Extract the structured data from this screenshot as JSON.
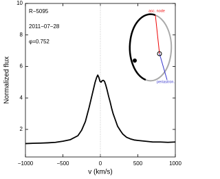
{
  "chart_data": {
    "type": "line",
    "x_label": "v (km/s)",
    "y_label": "Normalized flux",
    "annotations": [
      "R−5095",
      "2011−07−28",
      "φ=0.752"
    ],
    "inset_labels": [
      "asc. node",
      "periastron."
    ],
    "x": [
      -1000,
      -900,
      -800,
      -700,
      -600,
      -500,
      -400,
      -300,
      -250,
      -200,
      -150,
      -100,
      -70,
      -50,
      -35,
      -20,
      -5,
      10,
      25,
      40,
      55,
      70,
      90,
      110,
      130,
      150,
      170,
      200,
      230,
      270,
      300,
      350,
      400,
      450,
      500,
      600,
      700,
      800,
      900,
      1000
    ],
    "values": [
      1.1,
      1.12,
      1.13,
      1.15,
      1.18,
      1.25,
      1.35,
      1.6,
      1.95,
      2.5,
      3.4,
      4.4,
      5.0,
      5.3,
      5.45,
      5.3,
      5.05,
      5.0,
      5.1,
      5.12,
      5.05,
      4.85,
      4.5,
      4.1,
      3.75,
      3.35,
      3.0,
      2.6,
      2.2,
      1.9,
      1.7,
      1.5,
      1.4,
      1.33,
      1.3,
      1.25,
      1.2,
      1.2,
      1.18,
      1.2
    ],
    "color": "#000000",
    "xlim": [
      -1000,
      1000
    ],
    "ylim": [
      0.25,
      10
    ],
    "xticks": [
      {
        "value": -1000,
        "label": "−1000"
      },
      {
        "value": -500,
        "label": "−500"
      },
      0,
      500,
      1000
    ],
    "yticks": [
      2,
      4,
      6,
      8,
      10
    ],
    "reference_x": 0
  }
}
